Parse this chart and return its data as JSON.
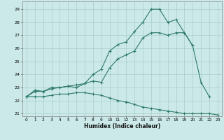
{
  "xlabel": "Humidex (Indice chaleur)",
  "background_color": "#cce9e9",
  "grid_color": "#a0c4c4",
  "line_color": "#2d7a6a",
  "ylim": [
    20.8,
    29.6
  ],
  "xlim": [
    -0.5,
    23.5
  ],
  "yticks": [
    21,
    22,
    23,
    24,
    25,
    26,
    27,
    28,
    29
  ],
  "xticks": [
    0,
    1,
    2,
    3,
    4,
    5,
    6,
    7,
    8,
    9,
    10,
    11,
    12,
    13,
    14,
    15,
    16,
    17,
    18,
    19,
    20,
    21,
    22,
    23
  ],
  "line1_x": [
    0,
    1,
    2,
    3,
    4,
    5,
    6,
    7,
    8,
    9,
    10,
    11,
    12,
    13,
    14,
    15,
    16,
    17,
    18,
    19,
    20,
    21,
    22
  ],
  "line1_y": [
    22.3,
    22.8,
    22.7,
    23.0,
    23.0,
    23.1,
    23.0,
    23.3,
    24.0,
    24.4,
    25.8,
    26.3,
    26.5,
    27.3,
    28.0,
    29.0,
    29.0,
    28.0,
    28.2,
    27.2,
    26.2,
    23.4,
    22.3
  ],
  "line2_x": [
    0,
    1,
    2,
    3,
    4,
    5,
    6,
    7,
    8,
    9,
    10,
    11,
    12,
    13,
    14,
    15,
    16,
    17,
    18,
    19,
    20
  ],
  "line2_y": [
    22.3,
    22.7,
    22.7,
    22.9,
    23.0,
    23.1,
    23.2,
    23.3,
    23.5,
    23.4,
    24.5,
    25.2,
    25.5,
    25.8,
    26.8,
    27.2,
    27.2,
    27.0,
    27.2,
    27.2,
    26.2
  ],
  "line3_x": [
    0,
    1,
    2,
    3,
    4,
    5,
    6,
    7,
    8,
    9,
    10,
    11,
    12,
    13,
    14,
    15,
    16,
    17,
    18,
    19,
    20,
    21,
    22,
    23
  ],
  "line3_y": [
    22.3,
    22.3,
    22.3,
    22.4,
    22.5,
    22.5,
    22.6,
    22.6,
    22.5,
    22.4,
    22.2,
    22.0,
    21.9,
    21.7,
    21.5,
    21.4,
    21.3,
    21.2,
    21.1,
    21.0,
    21.0,
    21.0,
    21.0,
    20.9
  ]
}
